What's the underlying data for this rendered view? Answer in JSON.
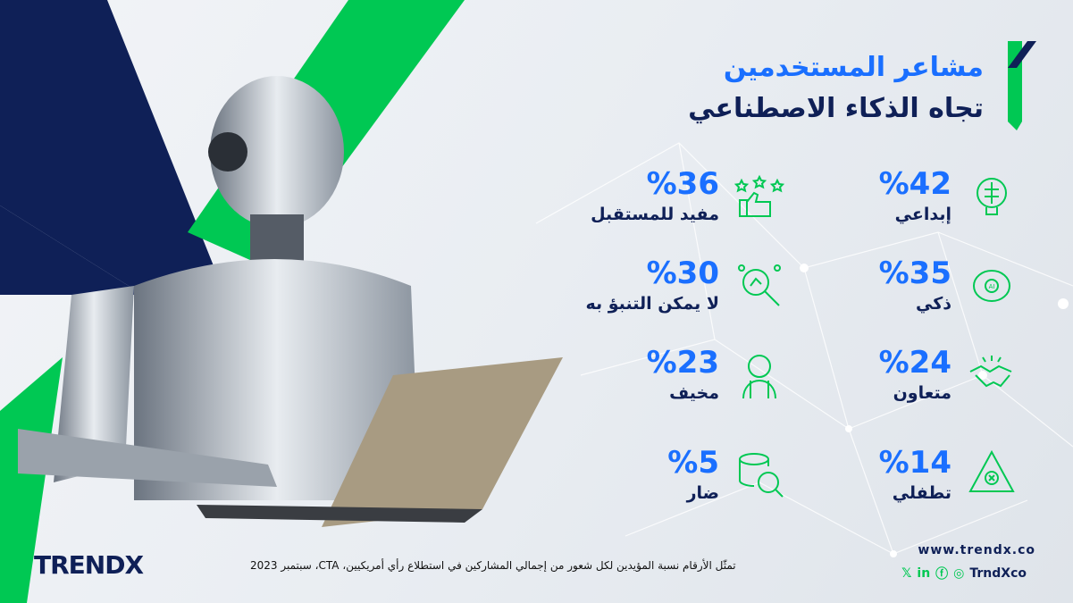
{
  "header": {
    "title_line1": "مشاعر المستخدمين",
    "title_line2": "تجاه الذكاء الاصطناعي"
  },
  "stats": [
    {
      "percent": "%42",
      "label": "إبداعي",
      "icon": "lightbulb-brain-icon"
    },
    {
      "percent": "%36",
      "label": "مفيد للمستقبل",
      "icon": "thumbs-up-stars-icon"
    },
    {
      "percent": "%35",
      "label": "ذكي",
      "icon": "ai-brain-icon"
    },
    {
      "percent": "%30",
      "label": "لا يمكن التنبؤ به",
      "icon": "magnifier-network-icon"
    },
    {
      "percent": "%24",
      "label": "متعاون",
      "icon": "handshake-icon"
    },
    {
      "percent": "%23",
      "label": "مخيف",
      "icon": "scared-person-icon"
    },
    {
      "percent": "%14",
      "label": "تطفلي",
      "icon": "warning-triangle-icon"
    },
    {
      "percent": "%5",
      "label": "ضار",
      "icon": "coins-search-icon"
    }
  ],
  "footer": {
    "note": "تمثّل الأرقام نسبة المؤيدين لكل شعور من إجمالي المشاركين في استطلاع رأي أمريكيين، CTA، سبتمبر 2023",
    "logo": "TRENDX",
    "website": "www.trendx.co",
    "social_handle": "TrndXco",
    "social_icons": [
      "x-icon",
      "linkedin-icon",
      "facebook-icon",
      "instagram-icon"
    ]
  },
  "colors": {
    "accent_blue": "#1a6fff",
    "navy": "#0f2057",
    "green": "#00c853"
  }
}
